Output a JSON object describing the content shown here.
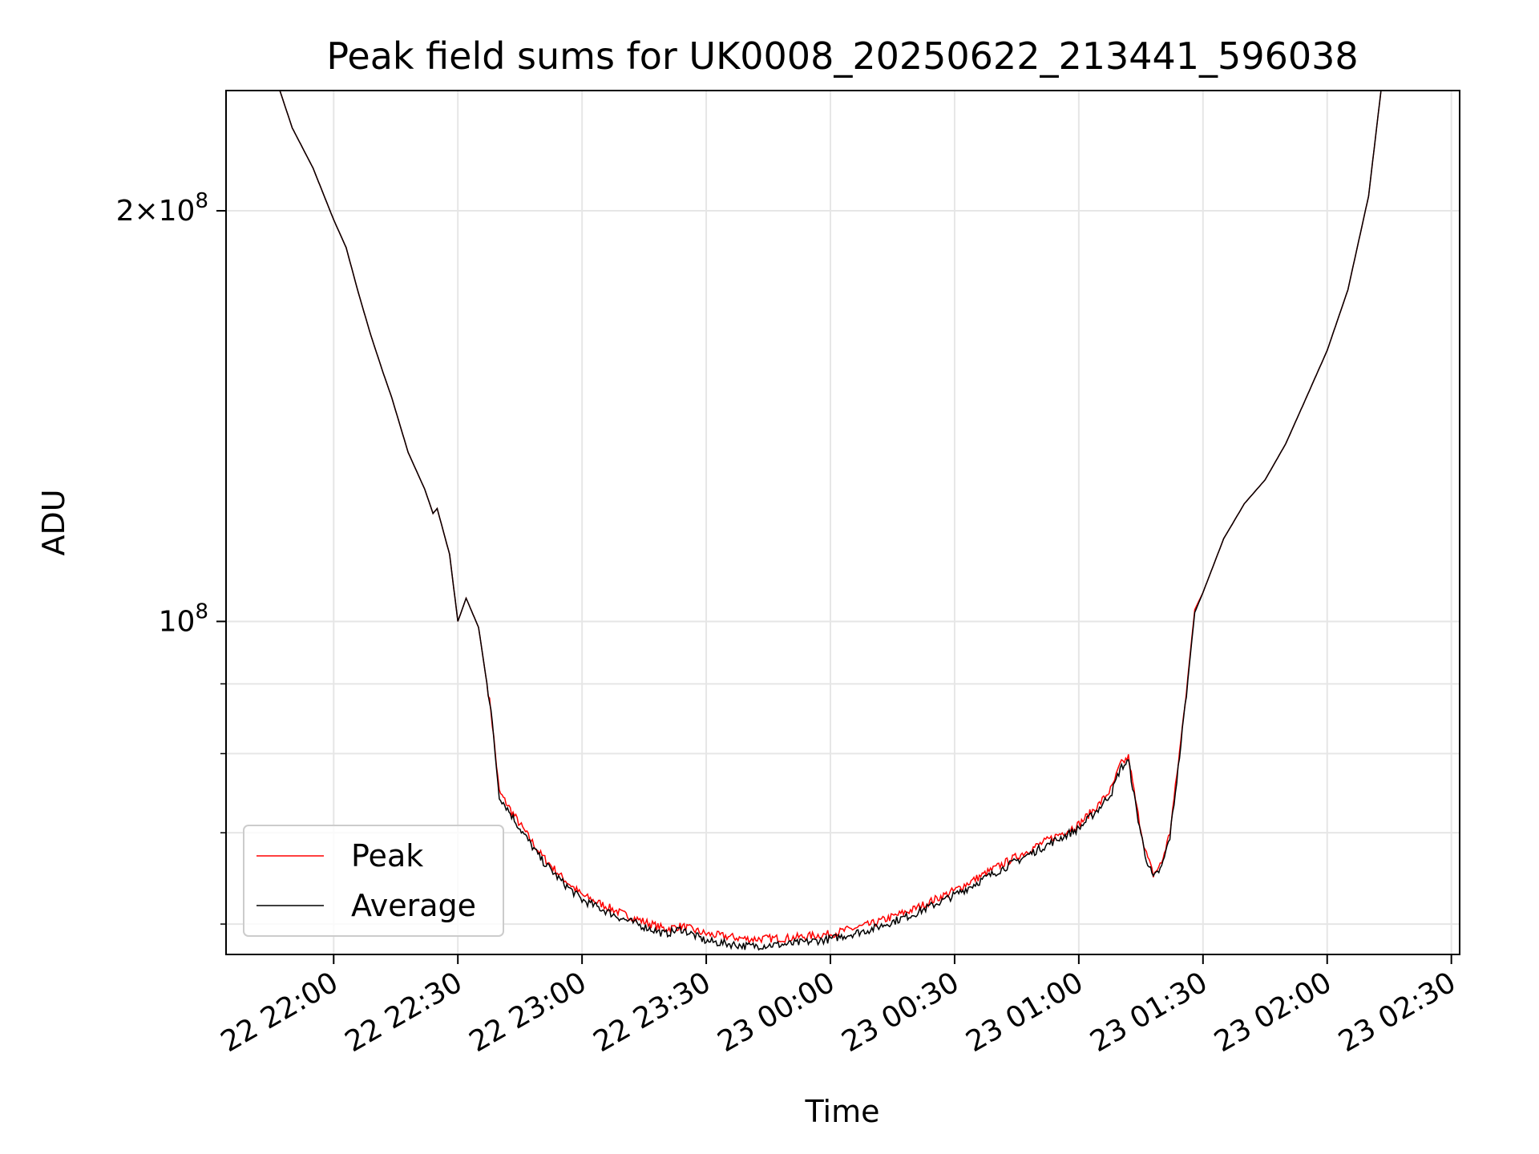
{
  "chart_data": {
    "type": "line",
    "title": "Peak field sums for UK0008_20250622_213441_596038",
    "xlabel": "Time",
    "ylabel": "ADU",
    "yscale": "log",
    "grid": true,
    "legend_position": "lower-left",
    "xlim": [
      "2025-06-22 21:34",
      "2025-06-23 02:32"
    ],
    "ylim": [
      57000000,
      245000000
    ],
    "x_ticks": [
      "2025-06-22 22:00",
      "2025-06-22 22:30",
      "2025-06-22 23:00",
      "2025-06-22 23:30",
      "2025-06-23 00:00",
      "2025-06-23 00:30",
      "2025-06-23 01:00",
      "2025-06-23 01:30",
      "2025-06-23 02:00",
      "2025-06-23 02:30"
    ],
    "x_tick_labels": [
      "22 22:00",
      "22 22:30",
      "22 23:00",
      "22 23:30",
      "23 00:00",
      "23 00:30",
      "23 01:00",
      "23 01:30",
      "23 02:00",
      "23 02:30"
    ],
    "y_major_ticks": [
      {
        "value": 100000000,
        "base": "10",
        "exp": "8",
        "coef": ""
      },
      {
        "value": 200000000,
        "base": "10",
        "exp": "8",
        "coef": "2"
      }
    ],
    "y_minor_ticks": [
      60000000,
      70000000,
      80000000,
      90000000
    ],
    "x": [
      "2025-06-22 21:34",
      "2025-06-22 21:47",
      "2025-06-22 21:50",
      "2025-06-22 21:55",
      "2025-06-22 22:00",
      "2025-06-22 22:03",
      "2025-06-22 22:06",
      "2025-06-22 22:09",
      "2025-06-22 22:12",
      "2025-06-22 22:14",
      "2025-06-22 22:18",
      "2025-06-22 22:22",
      "2025-06-22 22:24",
      "2025-06-22 22:25",
      "2025-06-22 22:28",
      "2025-06-22 22:30",
      "2025-06-22 22:32",
      "2025-06-22 22:35",
      "2025-06-22 22:38",
      "2025-06-22 22:40",
      "2025-06-22 22:45",
      "2025-06-22 22:50",
      "2025-06-22 22:55",
      "2025-06-22 23:00",
      "2025-06-22 23:10",
      "2025-06-22 23:20",
      "2025-06-22 23:24",
      "2025-06-22 23:30",
      "2025-06-22 23:40",
      "2025-06-22 23:50",
      "2025-06-23 00:00",
      "2025-06-23 00:10",
      "2025-06-23 00:20",
      "2025-06-23 00:30",
      "2025-06-23 00:40",
      "2025-06-23 00:50",
      "2025-06-23 01:00",
      "2025-06-23 01:05",
      "2025-06-23 01:08",
      "2025-06-23 01:10",
      "2025-06-23 01:12",
      "2025-06-23 01:14",
      "2025-06-23 01:16",
      "2025-06-23 01:18",
      "2025-06-23 01:20",
      "2025-06-23 01:22",
      "2025-06-23 01:24",
      "2025-06-23 01:26",
      "2025-06-23 01:28",
      "2025-06-23 01:30",
      "2025-06-23 01:35",
      "2025-06-23 01:40",
      "2025-06-23 01:45",
      "2025-06-23 01:50",
      "2025-06-23 01:55",
      "2025-06-23 02:00",
      "2025-06-23 02:05",
      "2025-06-23 02:10",
      "2025-06-23 02:13"
    ],
    "series": [
      {
        "name": "Peak",
        "color": "#ff0000",
        "values": [
          245000000,
          245000000,
          230000000,
          215000000,
          197000000,
          188000000,
          174000000,
          162000000,
          152000000,
          146000000,
          133000000,
          125000000,
          120000000,
          121000000,
          112000000,
          100000000,
          104000000,
          99000000,
          86000000,
          75000000,
          71000000,
          67500000,
          65000000,
          63000000,
          61000000,
          59500000,
          59800000,
          59000000,
          58500000,
          58600000,
          59000000,
          60000000,
          61500000,
          63500000,
          66000000,
          68500000,
          71000000,
          73500000,
          75500000,
          78500000,
          79500000,
          73000000,
          68000000,
          65200000,
          66500000,
          70000000,
          78500000,
          89000000,
          102000000,
          105000000,
          115000000,
          122000000,
          127000000,
          135000000,
          146000000,
          158000000,
          175000000,
          205000000,
          245000000
        ]
      },
      {
        "name": "Average",
        "color": "#000000",
        "values": [
          245000000,
          245000000,
          230000000,
          215000000,
          197000000,
          188000000,
          174000000,
          162000000,
          152000000,
          146000000,
          133000000,
          125000000,
          120000000,
          121000000,
          112000000,
          100000000,
          104000000,
          99000000,
          86000000,
          74500000,
          70500000,
          67000000,
          64500000,
          62500000,
          60500000,
          59000000,
          59500000,
          58300000,
          57800000,
          58000000,
          58500000,
          59500000,
          61000000,
          63000000,
          65500000,
          68000000,
          70500000,
          73000000,
          75000000,
          78000000,
          79000000,
          72500000,
          67500000,
          64800000,
          66000000,
          69500000,
          78000000,
          88500000,
          101500000,
          105000000,
          115000000,
          122000000,
          127000000,
          135000000,
          146000000,
          158000000,
          175000000,
          205000000,
          245000000
        ]
      }
    ]
  }
}
